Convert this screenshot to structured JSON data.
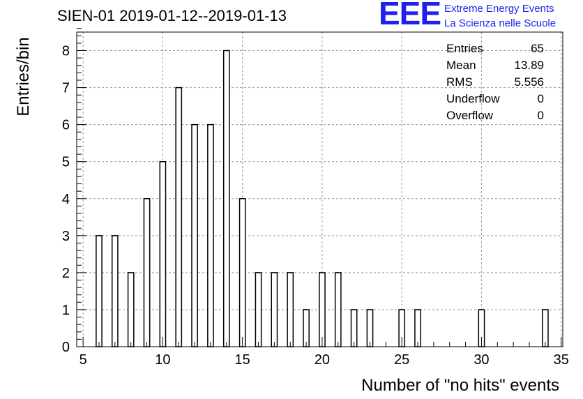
{
  "chart_data": {
    "type": "bar",
    "title": "SIEN-01 2019-01-12--2019-01-13",
    "xlabel": "Number of \"no hits\" events",
    "ylabel": "Entries/bin",
    "xlim": [
      4.6,
      35.1
    ],
    "ylim": [
      0,
      8.5
    ],
    "grid": true,
    "bin_width": 0.36,
    "x_ticks": [
      5,
      10,
      15,
      20,
      25,
      30,
      35
    ],
    "y_ticks": [
      0,
      1,
      2,
      3,
      4,
      5,
      6,
      7,
      8
    ],
    "bins": [
      {
        "x": 6,
        "count": 3
      },
      {
        "x": 7,
        "count": 3
      },
      {
        "x": 8,
        "count": 2
      },
      {
        "x": 9,
        "count": 4
      },
      {
        "x": 10,
        "count": 5
      },
      {
        "x": 11,
        "count": 7
      },
      {
        "x": 12,
        "count": 6
      },
      {
        "x": 13,
        "count": 6
      },
      {
        "x": 14,
        "count": 8
      },
      {
        "x": 15,
        "count": 4
      },
      {
        "x": 16,
        "count": 2
      },
      {
        "x": 17,
        "count": 2
      },
      {
        "x": 18,
        "count": 2
      },
      {
        "x": 19,
        "count": 1
      },
      {
        "x": 20,
        "count": 2
      },
      {
        "x": 21,
        "count": 2
      },
      {
        "x": 22,
        "count": 1
      },
      {
        "x": 23,
        "count": 1
      },
      {
        "x": 25,
        "count": 1
      },
      {
        "x": 26,
        "count": 1
      },
      {
        "x": 30,
        "count": 1
      },
      {
        "x": 34,
        "count": 1
      }
    ],
    "stats": [
      {
        "label": "Entries",
        "value": "65"
      },
      {
        "label": "Mean",
        "value": "13.89"
      },
      {
        "label": "RMS",
        "value": "5.556"
      },
      {
        "label": "Underflow",
        "value": "0"
      },
      {
        "label": "Overflow",
        "value": "0"
      }
    ]
  },
  "logo": {
    "mark": "EEE",
    "line1": "Extreme Energy Events",
    "line2": "La Scienza nelle Scuole",
    "color": "#1f1ff0"
  }
}
